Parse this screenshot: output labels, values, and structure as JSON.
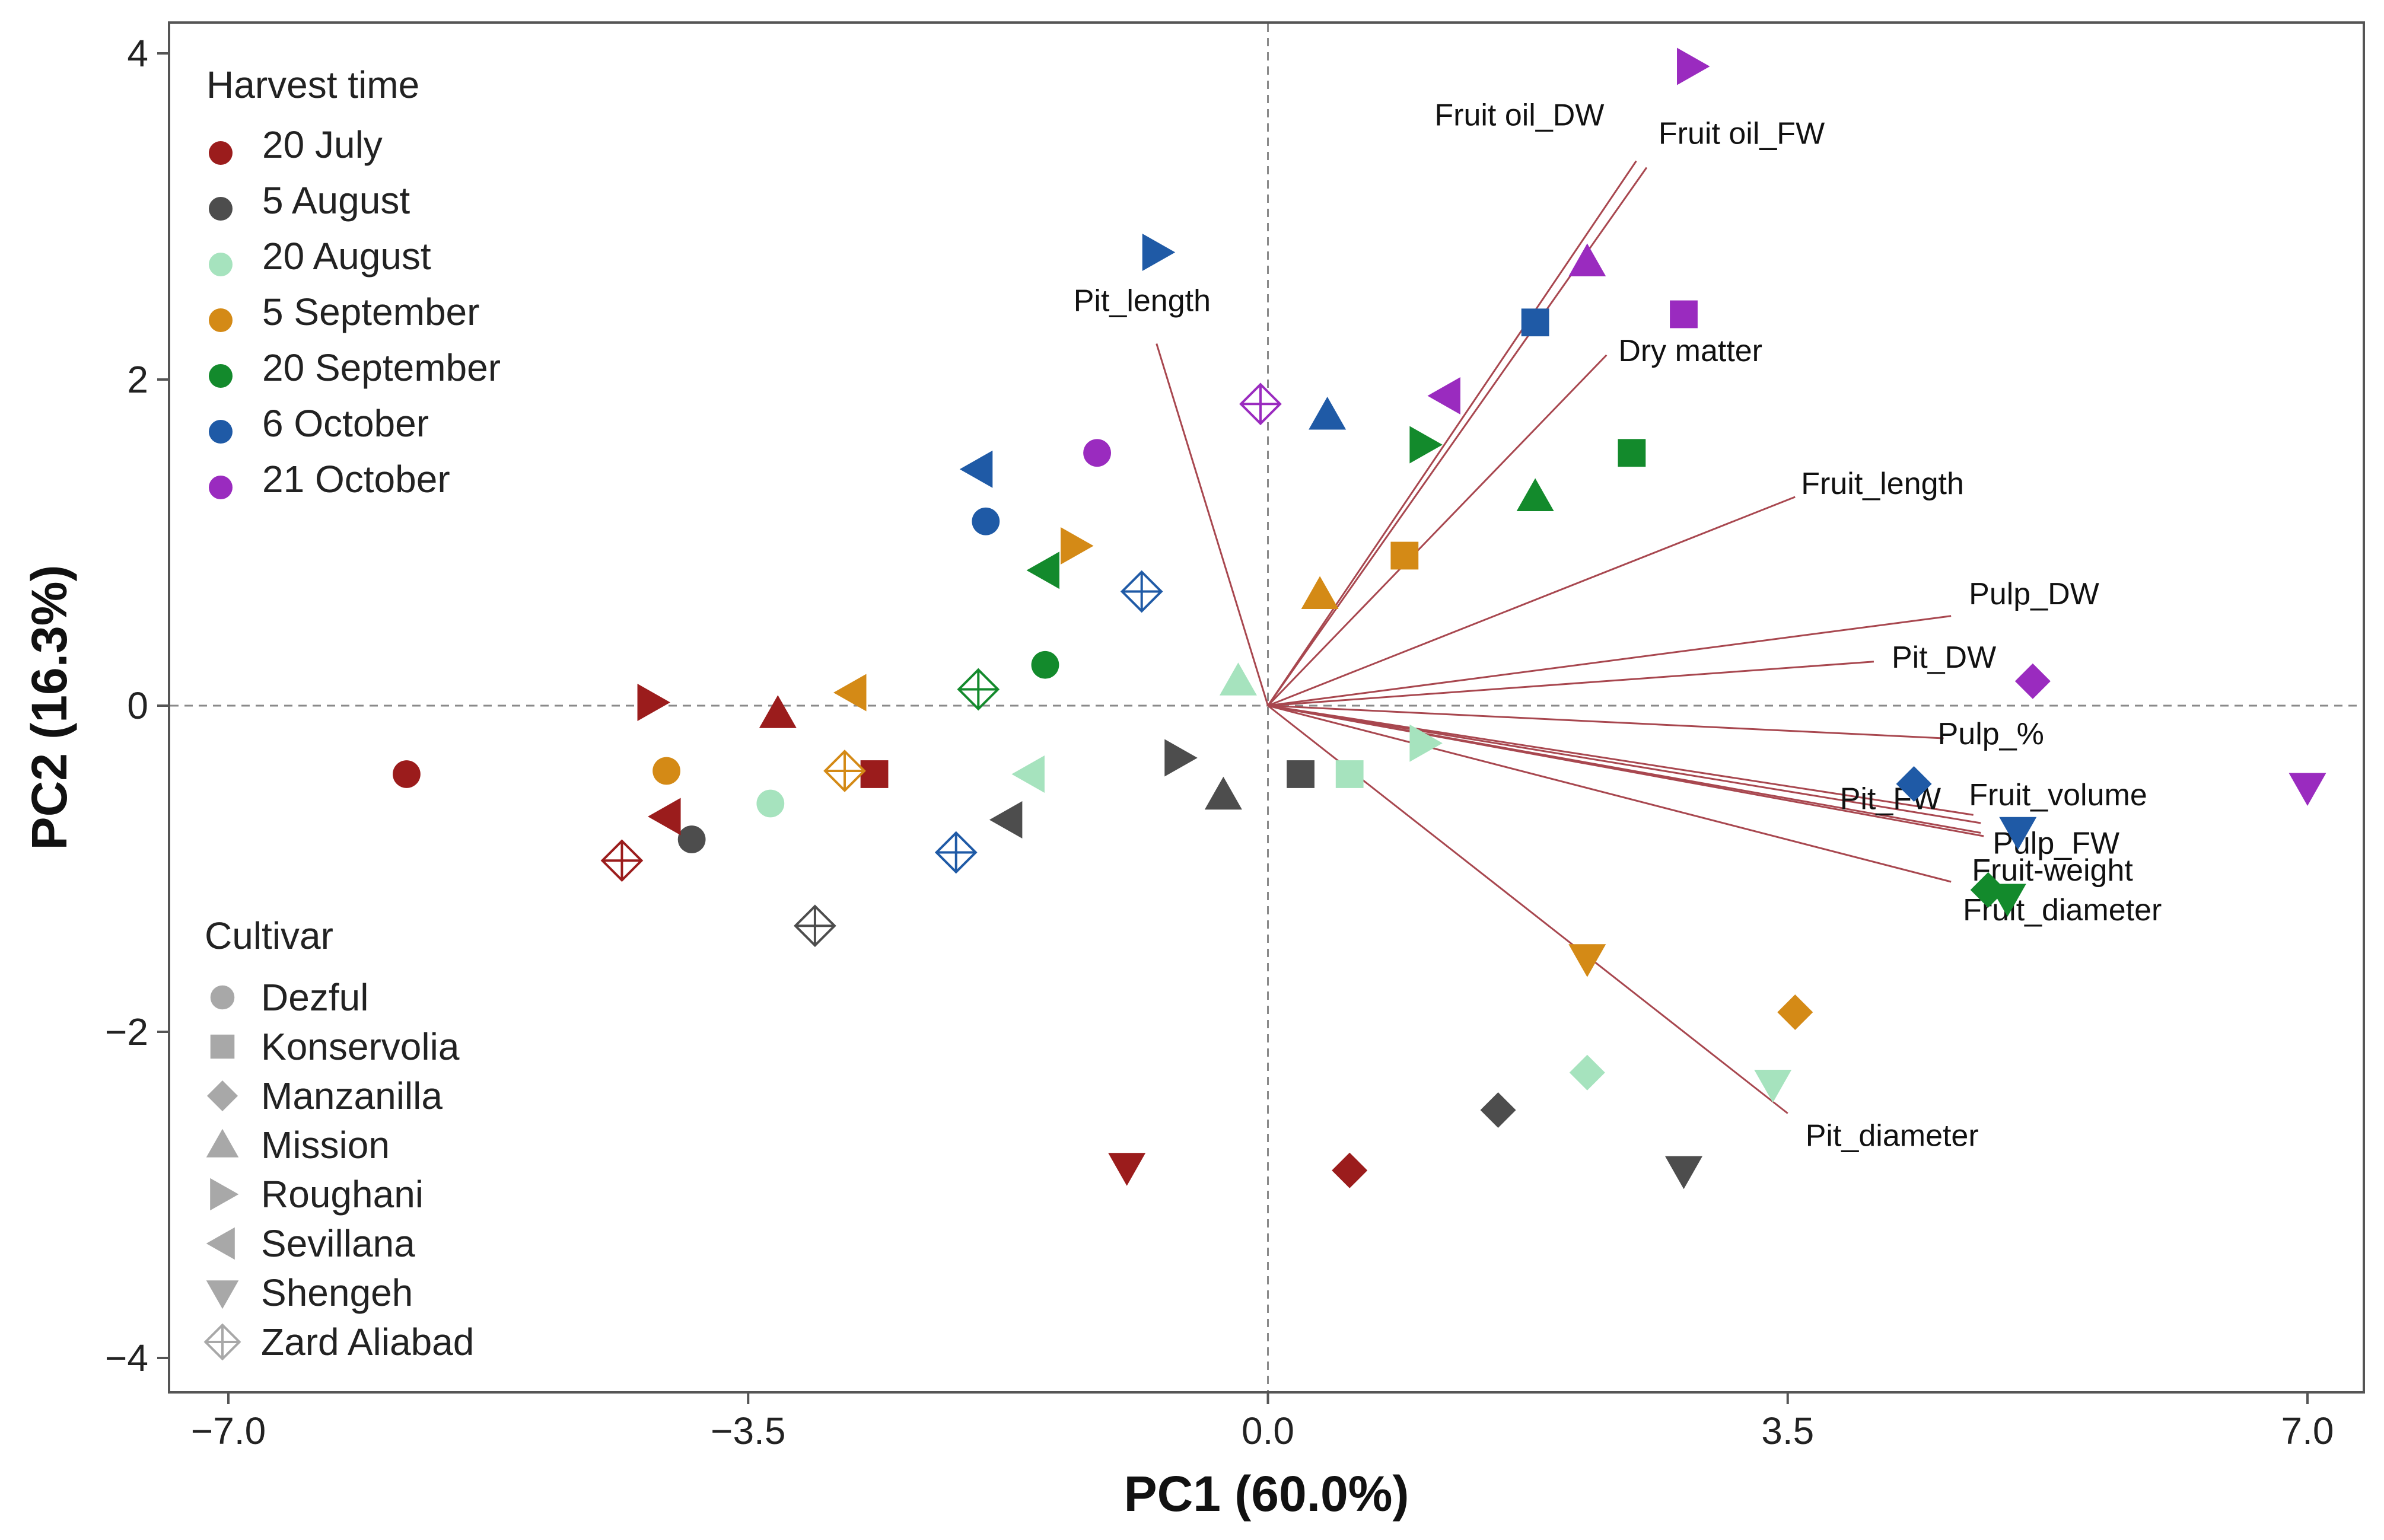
{
  "chart_data": {
    "type": "scatter",
    "subtype": "pca-biplot",
    "xlabel": "PC1 (60.0%)",
    "ylabel": "PC2 (16.3%)",
    "xlim": [
      -7.0,
      7.0
    ],
    "ylim": [
      -4.0,
      4.0
    ],
    "x_ticks": [
      -7.0,
      -3.5,
      0.0,
      3.5,
      7.0
    ],
    "x_tick_labels": [
      "−7.0",
      "−3.5",
      "0.0",
      "3.5",
      "7.0"
    ],
    "y_ticks": [
      4,
      2,
      0,
      -2,
      -4
    ],
    "y_tick_labels": [
      "4",
      "2",
      "0",
      "−2",
      "−4"
    ],
    "reference_lines": [
      "x=0",
      "y=0"
    ],
    "grid": false,
    "legend_placement": "left",
    "legend_harvest": {
      "title": "Harvest time",
      "items": [
        {
          "label": "20 July",
          "color": "#9b1c1c"
        },
        {
          "label": "5 August",
          "color": "#4d4d4d"
        },
        {
          "label": "20 August",
          "color": "#a6e3be"
        },
        {
          "label": "5 September",
          "color": "#d48a16"
        },
        {
          "label": "20 September",
          "color": "#138a2c"
        },
        {
          "label": "6 October",
          "color": "#1f5aa6"
        },
        {
          "label": "21 October",
          "color": "#9a2bbf"
        }
      ]
    },
    "legend_cultivar": {
      "title": "Cultivar",
      "marker_color": "#a8a8a8",
      "items": [
        {
          "label": "Dezful",
          "shape": "circle"
        },
        {
          "label": "Konservolia",
          "shape": "square"
        },
        {
          "label": "Manzanilla",
          "shape": "diamond"
        },
        {
          "label": "Mission",
          "shape": "triangle-up"
        },
        {
          "label": "Roughani",
          "shape": "triangle-right"
        },
        {
          "label": "Sevillana",
          "shape": "triangle-left"
        },
        {
          "label": "Shengeh",
          "shape": "triangle-down"
        },
        {
          "label": "Zard Aliabad",
          "shape": "diamond-cross"
        }
      ]
    },
    "loadings_color": "#a8474f",
    "loadings": [
      {
        "name": "Fruit oil_DW",
        "x": 2.48,
        "y": 3.34
      },
      {
        "name": "Fruit oil_FW",
        "x": 2.55,
        "y": 3.3
      },
      {
        "name": "Pit_length",
        "x": -0.75,
        "y": 2.22
      },
      {
        "name": "Dry  matter",
        "x": 2.28,
        "y": 2.15
      },
      {
        "name": "Fruit_length",
        "x": 3.55,
        "y": 1.28
      },
      {
        "name": "Pulp_DW",
        "x": 4.6,
        "y": 0.55
      },
      {
        "name": "Pit_DW",
        "x": 4.08,
        "y": 0.27
      },
      {
        "name": "Pulp_%",
        "x": 4.55,
        "y": -0.2
      },
      {
        "name": "Fruit_volume",
        "x": 4.8,
        "y": -0.72
      },
      {
        "name": "Pulp_FW",
        "x": 4.8,
        "y": -0.78
      },
      {
        "name": "Pit_FW",
        "x": 4.75,
        "y": -0.67
      },
      {
        "name": "Fruit-weight",
        "x": 4.82,
        "y": -0.8
      },
      {
        "name": "Fruit_diameter",
        "x": 4.6,
        "y": -1.08
      },
      {
        "name": "Pit_diameter",
        "x": 3.5,
        "y": -2.5
      }
    ],
    "points": [
      {
        "cultivar": "Dezful",
        "harvest": "20 July",
        "x": -5.8,
        "y": -0.42
      },
      {
        "cultivar": "Dezful",
        "harvest": "5 August",
        "x": -3.88,
        "y": -0.82
      },
      {
        "cultivar": "Dezful",
        "harvest": "20 August",
        "x": -3.35,
        "y": -0.6
      },
      {
        "cultivar": "Dezful",
        "harvest": "5 September",
        "x": -4.05,
        "y": -0.4
      },
      {
        "cultivar": "Dezful",
        "harvest": "20 September",
        "x": -1.5,
        "y": 0.25
      },
      {
        "cultivar": "Dezful",
        "harvest": "6 October",
        "x": -1.9,
        "y": 1.13
      },
      {
        "cultivar": "Dezful",
        "harvest": "21 October",
        "x": -1.15,
        "y": 1.55
      },
      {
        "cultivar": "Konservolia",
        "harvest": "20 July",
        "x": -2.65,
        "y": -0.42
      },
      {
        "cultivar": "Konservolia",
        "harvest": "5 August",
        "x": 0.22,
        "y": -0.42
      },
      {
        "cultivar": "Konservolia",
        "harvest": "20 August",
        "x": 0.55,
        "y": -0.42
      },
      {
        "cultivar": "Konservolia",
        "harvest": "5 September",
        "x": 0.92,
        "y": 0.92
      },
      {
        "cultivar": "Konservolia",
        "harvest": "20 September",
        "x": 2.45,
        "y": 1.55
      },
      {
        "cultivar": "Konservolia",
        "harvest": "6 October",
        "x": 1.8,
        "y": 2.35
      },
      {
        "cultivar": "Konservolia",
        "harvest": "21 October",
        "x": 2.8,
        "y": 2.4
      },
      {
        "cultivar": "Manzanilla",
        "harvest": "20 July",
        "x": 0.55,
        "y": -2.85
      },
      {
        "cultivar": "Manzanilla",
        "harvest": "5 August",
        "x": 1.55,
        "y": -2.48
      },
      {
        "cultivar": "Manzanilla",
        "harvest": "20 August",
        "x": 2.15,
        "y": -2.25
      },
      {
        "cultivar": "Manzanilla",
        "harvest": "5 September",
        "x": 3.55,
        "y": -1.88
      },
      {
        "cultivar": "Manzanilla",
        "harvest": "20 September",
        "x": 4.85,
        "y": -1.13
      },
      {
        "cultivar": "Manzanilla",
        "harvest": "6 October",
        "x": 4.35,
        "y": -0.48
      },
      {
        "cultivar": "Manzanilla",
        "harvest": "21 October",
        "x": 5.15,
        "y": 0.15
      },
      {
        "cultivar": "Mission",
        "harvest": "20 July",
        "x": -3.3,
        "y": -0.05
      },
      {
        "cultivar": "Mission",
        "harvest": "5 August",
        "x": -0.3,
        "y": -0.55
      },
      {
        "cultivar": "Mission",
        "harvest": "20 August",
        "x": -0.2,
        "y": 0.15
      },
      {
        "cultivar": "Mission",
        "harvest": "5 September",
        "x": 0.35,
        "y": 0.68
      },
      {
        "cultivar": "Mission",
        "harvest": "20 September",
        "x": 1.8,
        "y": 1.28
      },
      {
        "cultivar": "Mission",
        "harvest": "6 October",
        "x": 0.4,
        "y": 1.78
      },
      {
        "cultivar": "Mission",
        "harvest": "21 October",
        "x": 2.15,
        "y": 2.72
      },
      {
        "cultivar": "Roughani",
        "harvest": "20 July",
        "x": -4.15,
        "y": 0.02
      },
      {
        "cultivar": "Roughani",
        "harvest": "5 August",
        "x": -0.6,
        "y": -0.32
      },
      {
        "cultivar": "Roughani",
        "harvest": "20 August",
        "x": 1.05,
        "y": -0.23
      },
      {
        "cultivar": "Roughani",
        "harvest": "5 September",
        "x": -1.3,
        "y": 0.98
      },
      {
        "cultivar": "Roughani",
        "harvest": "20 September",
        "x": 1.05,
        "y": 1.6
      },
      {
        "cultivar": "Roughani",
        "harvest": "6 October",
        "x": -0.75,
        "y": 2.78
      },
      {
        "cultivar": "Roughani",
        "harvest": "21 October",
        "x": 2.85,
        "y": 3.92
      },
      {
        "cultivar": "Sevillana",
        "harvest": "20 July",
        "x": -4.05,
        "y": -0.68
      },
      {
        "cultivar": "Sevillana",
        "harvest": "5 August",
        "x": -1.75,
        "y": -0.7
      },
      {
        "cultivar": "Sevillana",
        "harvest": "20 August",
        "x": -1.6,
        "y": -0.42
      },
      {
        "cultivar": "Sevillana",
        "harvest": "5 September",
        "x": -2.8,
        "y": 0.08
      },
      {
        "cultivar": "Sevillana",
        "harvest": "20 September",
        "x": -1.5,
        "y": 0.83
      },
      {
        "cultivar": "Sevillana",
        "harvest": "6 October",
        "x": -1.95,
        "y": 1.45
      },
      {
        "cultivar": "Sevillana",
        "harvest": "21 October",
        "x": 1.2,
        "y": 1.9
      },
      {
        "cultivar": "Shengeh",
        "harvest": "20 July",
        "x": -0.95,
        "y": -2.83
      },
      {
        "cultivar": "Shengeh",
        "harvest": "5 August",
        "x": 2.8,
        "y": -2.85
      },
      {
        "cultivar": "Shengeh",
        "harvest": "20 August",
        "x": 3.4,
        "y": -2.32
      },
      {
        "cultivar": "Shengeh",
        "harvest": "5 September",
        "x": 2.15,
        "y": -1.55
      },
      {
        "cultivar": "Shengeh",
        "harvest": "20 September",
        "x": 4.98,
        "y": -1.18
      },
      {
        "cultivar": "Shengeh",
        "harvest": "6 October",
        "x": 5.05,
        "y": -0.77
      },
      {
        "cultivar": "Shengeh",
        "harvest": "21 October",
        "x": 7.0,
        "y": -0.5
      },
      {
        "cultivar": "Zard Aliabad",
        "harvest": "20 July",
        "x": -4.35,
        "y": -0.95
      },
      {
        "cultivar": "Zard Aliabad",
        "harvest": "5 August",
        "x": -3.05,
        "y": -1.35
      },
      {
        "cultivar": "Zard Aliabad",
        "harvest": "5 September",
        "x": -2.85,
        "y": -0.4
      },
      {
        "cultivar": "Zard Aliabad",
        "harvest": "20 September",
        "x": -1.95,
        "y": 0.1
      },
      {
        "cultivar": "Zard Aliabad",
        "harvest": "6 October",
        "x": -2.1,
        "y": -0.9
      },
      {
        "cultivar": "Zard Aliabad",
        "harvest": "6 October",
        "x": -0.85,
        "y": 0.7
      },
      {
        "cultivar": "Zard Aliabad",
        "harvest": "21 October",
        "x": -0.05,
        "y": 1.85
      }
    ]
  }
}
